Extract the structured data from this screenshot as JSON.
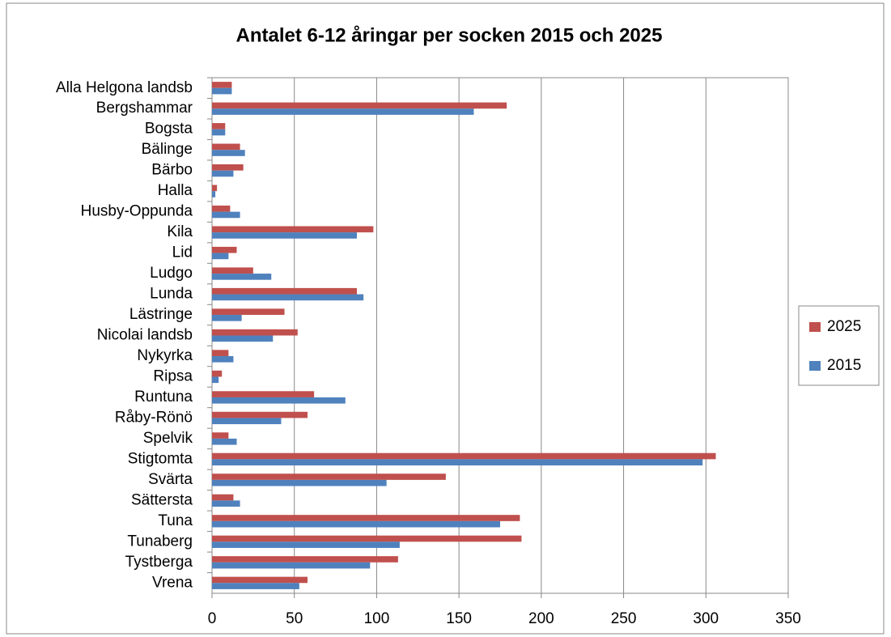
{
  "chart_data": {
    "type": "bar",
    "orientation": "horizontal",
    "title": "Antalet 6-12 åringar per socken 2015 och 2025",
    "categories": [
      "Alla Helgona landsb",
      "Bergshammar",
      "Bogsta",
      "Bälinge",
      "Bärbo",
      "Halla",
      "Husby-Oppunda",
      "Kila",
      "Lid",
      "Ludgo",
      "Lunda",
      "Lästringe",
      "Nicolai landsb",
      "Nykyrka",
      "Ripsa",
      "Runtuna",
      "Råby-Rönö",
      "Spelvik",
      "Stigtomta",
      "Svärta",
      "Sättersta",
      "Tuna",
      "Tunaberg",
      "Tystberga",
      "Vrena"
    ],
    "series": [
      {
        "name": "2025",
        "color": "#c0504d",
        "values": [
          12,
          179,
          8,
          17,
          19,
          3,
          11,
          98,
          15,
          25,
          88,
          44,
          52,
          10,
          6,
          62,
          58,
          10,
          306,
          142,
          13,
          187,
          188,
          113,
          58
        ]
      },
      {
        "name": "2015",
        "color": "#4f81bd",
        "values": [
          12,
          159,
          8,
          20,
          13,
          2,
          17,
          88,
          10,
          36,
          92,
          18,
          37,
          13,
          4,
          81,
          42,
          15,
          298,
          106,
          17,
          175,
          114,
          96,
          53
        ]
      }
    ],
    "xlim": [
      0,
      350
    ],
    "xticks": [
      0,
      50,
      100,
      150,
      200,
      250,
      300,
      350
    ],
    "grid": true,
    "legend": "right"
  }
}
